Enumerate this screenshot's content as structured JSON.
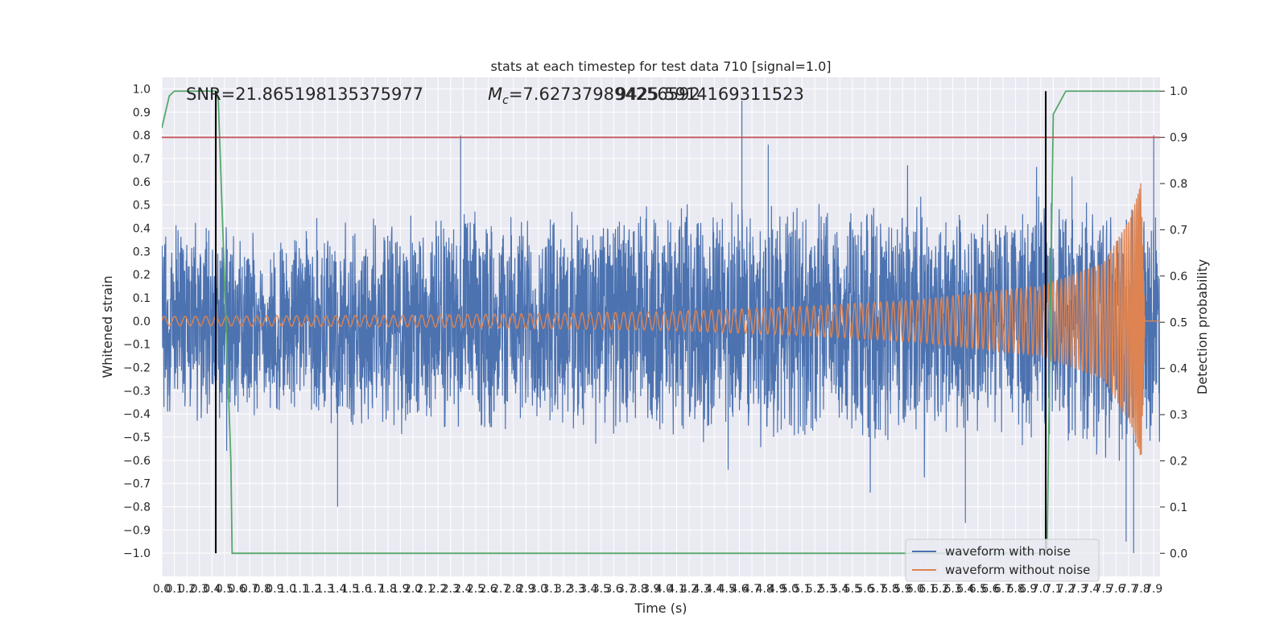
{
  "chart_data": {
    "type": "line",
    "title": "stats at each timestep for test data 710 [signal=1.0]",
    "xlabel": "Time (s)",
    "ylabel": "Whitened strain",
    "y2label": "Detection probability",
    "xlim": [
      0.0,
      7.95
    ],
    "ylim": [
      -1.1,
      1.05
    ],
    "y2lim": [
      -0.05,
      1.03
    ],
    "x_ticks": [
      0.0,
      0.1,
      0.2,
      0.3,
      0.4,
      0.5,
      0.6,
      0.7,
      0.8,
      0.9,
      1.0,
      1.1,
      1.2,
      1.3,
      1.4,
      1.5,
      1.6,
      1.7,
      1.8,
      1.9,
      2.0,
      2.1,
      2.2,
      2.3,
      2.4,
      2.5,
      2.6,
      2.7,
      2.8,
      2.9,
      3.0,
      3.1,
      3.2,
      3.3,
      3.4,
      3.5,
      3.6,
      3.7,
      3.8,
      3.9,
      4.0,
      4.1,
      4.2,
      4.3,
      4.4,
      4.5,
      4.6,
      4.7,
      4.8,
      4.9,
      5.0,
      5.1,
      5.2,
      5.3,
      5.4,
      5.5,
      5.6,
      5.7,
      5.8,
      5.9,
      6.0,
      6.1,
      6.2,
      6.3,
      6.4,
      6.5,
      6.6,
      6.7,
      6.8,
      6.9,
      7.0,
      7.1,
      7.2,
      7.3,
      7.4,
      7.5,
      7.6,
      7.7,
      7.8,
      7.9
    ],
    "x_tick_labels": [
      "0.0",
      "0.1",
      "0.2",
      "0.3",
      "0.4",
      "0.5",
      "0.6",
      "0.7",
      "0.8",
      "0.9",
      "1.0",
      "1.1",
      "1.2",
      "1.3",
      "1.4",
      "1.5",
      "1.6",
      "1.7",
      "1.8",
      "1.9",
      "2.0",
      "2.1",
      "2.2",
      "2.3",
      "2.4",
      "2.5",
      "2.6",
      "2.7",
      "2.8",
      "2.9",
      "3.0",
      "3.1",
      "3.2",
      "3.3",
      "3.4",
      "3.5",
      "3.6",
      "3.7",
      "3.8",
      "3.9",
      "4.0",
      "4.1",
      "4.2",
      "4.3",
      "4.4",
      "4.5",
      "4.6",
      "4.7",
      "4.8",
      "4.9",
      "5.0",
      "5.1",
      "5.2",
      "5.3",
      "5.4",
      "5.5",
      "5.6",
      "5.7",
      "5.8",
      "5.9",
      "6.0",
      "6.1",
      "6.2",
      "6.3",
      "6.4",
      "6.5",
      "6.6",
      "6.7",
      "6.8",
      "6.9",
      "7.0",
      "7.1",
      "7.2",
      "7.3",
      "7.4",
      "7.5",
      "7.6",
      "7.7",
      "7.8",
      "7.9"
    ],
    "y_ticks": [
      1.0,
      0.9,
      0.8,
      0.7,
      0.6,
      0.5,
      0.4,
      0.3,
      0.2,
      0.1,
      0.0,
      -0.1,
      -0.2,
      -0.3,
      -0.4,
      -0.5,
      -0.6,
      -0.7,
      -0.8,
      -0.9,
      -1.0
    ],
    "y_tick_labels": [
      "1.0",
      "0.9",
      "0.8",
      "0.7",
      "0.6",
      "0.5",
      "0.4",
      "0.3",
      "0.2",
      "0.1",
      "0.0",
      "−0.1",
      "−0.2",
      "−0.3",
      "−0.4",
      "−0.5",
      "−0.6",
      "−0.7",
      "−0.8",
      "−0.9",
      "−1.0"
    ],
    "y2_ticks": [
      1.0,
      0.9,
      0.8,
      0.7,
      0.6,
      0.5,
      0.4,
      0.3,
      0.2,
      0.1,
      0.0
    ],
    "y2_tick_labels": [
      "1.0",
      "0.9",
      "0.8",
      "0.7",
      "0.6",
      "0.5",
      "0.4",
      "0.3",
      "0.2",
      "0.1",
      "0.0"
    ],
    "grid": true,
    "legend": {
      "placement": "lower-right",
      "entries": [
        {
          "name": "waveform with noise",
          "color": "#4c72b0"
        },
        {
          "name": "waveform without noise",
          "color": "#dd8452"
        }
      ]
    },
    "annotations": {
      "snr": "SNR=21.865198135375977",
      "mc_symbol": "M",
      "mc_sub": "c",
      "mc_value": "=7.627379894256592",
      "overlap": "9425.5914169311523"
    },
    "series": [
      {
        "name": "waveform with noise",
        "color": "#4c72b0",
        "axis": "left",
        "kind": "noise",
        "envelope_points": [
          [
            0.0,
            0.45
          ],
          [
            1.0,
            0.45
          ],
          [
            2.0,
            0.5
          ],
          [
            3.0,
            0.5
          ],
          [
            4.0,
            0.52
          ],
          [
            5.0,
            0.55
          ],
          [
            6.0,
            0.55
          ],
          [
            7.0,
            0.55
          ],
          [
            7.95,
            0.55
          ]
        ],
        "spikes": [
          [
            2.38,
            0.8
          ],
          [
            4.62,
            0.95
          ],
          [
            4.83,
            0.76
          ],
          [
            7.9,
            0.8
          ],
          [
            6.4,
            -0.87
          ],
          [
            7.68,
            -0.95
          ],
          [
            7.74,
            -1.0
          ],
          [
            1.4,
            -0.8
          ]
        ]
      },
      {
        "name": "waveform without noise",
        "color": "#dd8452",
        "axis": "left",
        "kind": "chirp",
        "amplitude_points": [
          [
            0.0,
            0.02
          ],
          [
            2.0,
            0.025
          ],
          [
            4.0,
            0.04
          ],
          [
            5.0,
            0.06
          ],
          [
            6.0,
            0.09
          ],
          [
            7.0,
            0.15
          ],
          [
            7.5,
            0.25
          ],
          [
            7.72,
            0.45
          ],
          [
            7.8,
            0.6
          ],
          [
            7.83,
            0.0
          ],
          [
            7.95,
            0.0
          ]
        ]
      },
      {
        "name": "detection probability",
        "color": "#55a868",
        "axis": "right",
        "points": [
          [
            0.0,
            0.92
          ],
          [
            0.06,
            0.99
          ],
          [
            0.1,
            1.0
          ],
          [
            0.43,
            1.0
          ],
          [
            0.45,
            0.98
          ],
          [
            0.55,
            0.2
          ],
          [
            0.56,
            0.0
          ],
          [
            7.05,
            0.0
          ],
          [
            7.1,
            0.95
          ],
          [
            7.2,
            1.0
          ],
          [
            7.95,
            1.0
          ]
        ]
      },
      {
        "name": "threshold",
        "color": "#c44e52",
        "axis": "right",
        "points": [
          [
            0.0,
            0.9
          ],
          [
            7.95,
            0.9
          ]
        ]
      }
    ],
    "vlines": [
      {
        "x": 0.43,
        "ymin": 0.0,
        "ymax": 1.0,
        "color": "#000000"
      },
      {
        "x": 7.04,
        "ymin": 0.0,
        "ymax": 1.0,
        "color": "#000000"
      }
    ]
  }
}
